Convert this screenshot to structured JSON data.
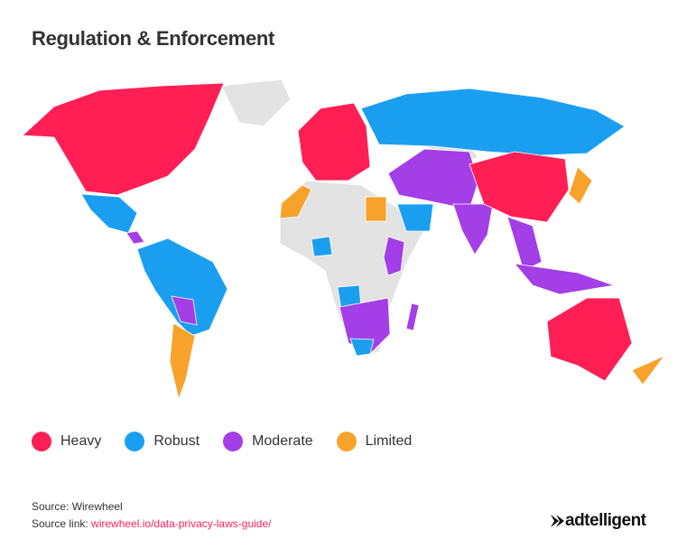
{
  "header": {
    "title": "Regulation & Enforcement"
  },
  "legend": [
    {
      "label": "Heavy",
      "color": "#ff1f55"
    },
    {
      "label": "Robust",
      "color": "#1a9ff0"
    },
    {
      "label": "Moderate",
      "color": "#a43ee6"
    },
    {
      "label": "Limited",
      "color": "#f7a22a"
    }
  ],
  "footer": {
    "source": "Source: Wirewheel",
    "source_link_label": "Source link:",
    "source_link": "wirewheel.io/data-privacy-laws-guide/",
    "logo": "adtelligent"
  }
}
